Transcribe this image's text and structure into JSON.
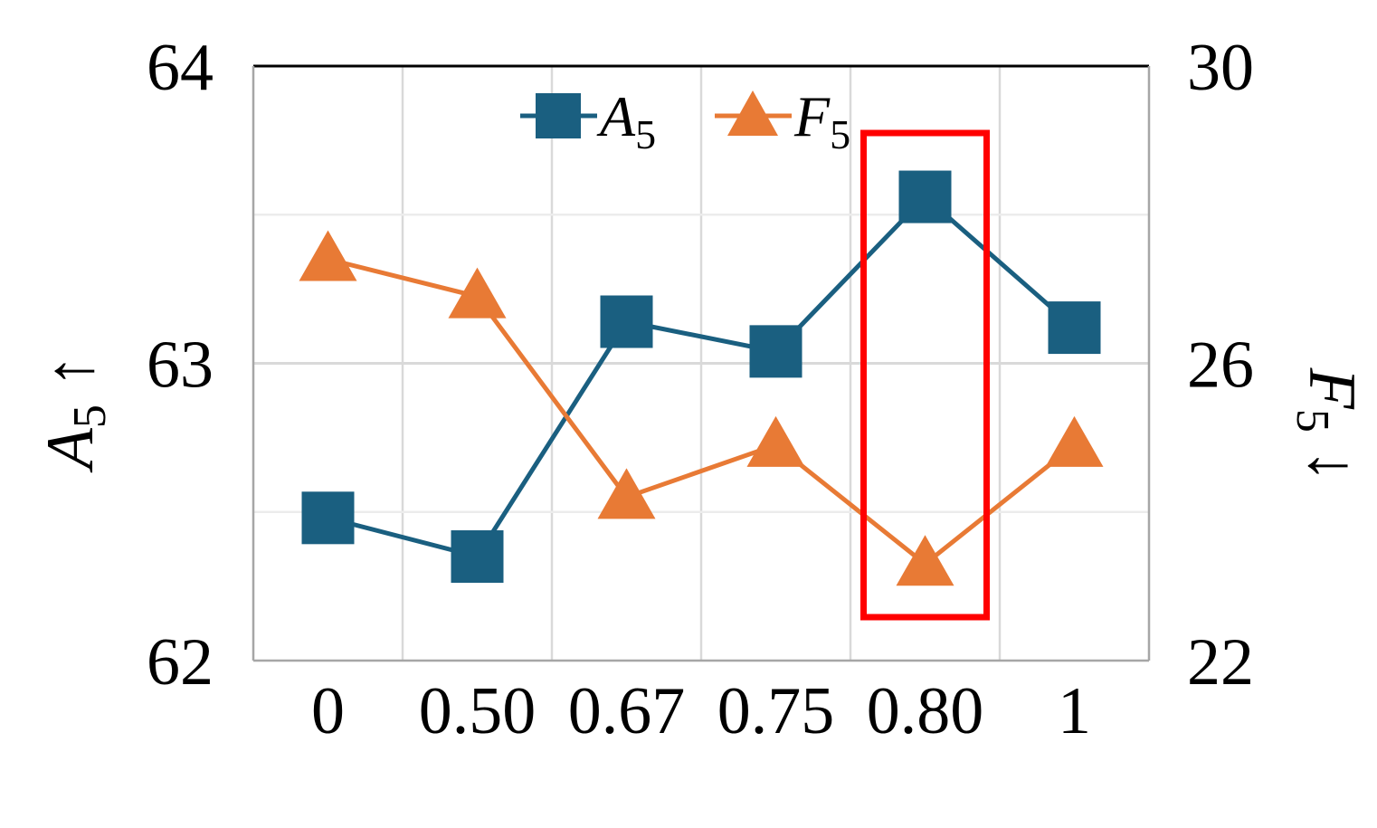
{
  "chart_data": {
    "type": "line",
    "categories": [
      "0",
      "0.50",
      "0.67",
      "0.75",
      "0.80",
      "1"
    ],
    "series": [
      {
        "name": "A",
        "name_sub": "5",
        "axis": "left",
        "marker": "square",
        "color": "#1a5f80",
        "values": [
          62.48,
          62.35,
          63.14,
          63.04,
          63.56,
          63.12
        ]
      },
      {
        "name": "F",
        "name_sub": "5",
        "axis": "right",
        "marker": "triangle",
        "color": "#e87a35",
        "values": [
          27.4,
          26.9,
          24.2,
          24.9,
          23.3,
          24.9
        ]
      }
    ],
    "y_left": {
      "label": "A",
      "label_sub": "5",
      "label_arrow": "↑",
      "ylim": [
        62,
        64
      ],
      "ticks": [
        "62",
        "63",
        "64"
      ],
      "minor_step": 0.5
    },
    "y_right": {
      "label": "F",
      "label_sub": "5",
      "label_arrow": "↓",
      "ylim": [
        22,
        30
      ],
      "ticks": [
        "22",
        "26",
        "30"
      ]
    },
    "grid": true,
    "legend": "top-center",
    "highlight": {
      "category": "0.80",
      "color": "#ff0000"
    }
  }
}
